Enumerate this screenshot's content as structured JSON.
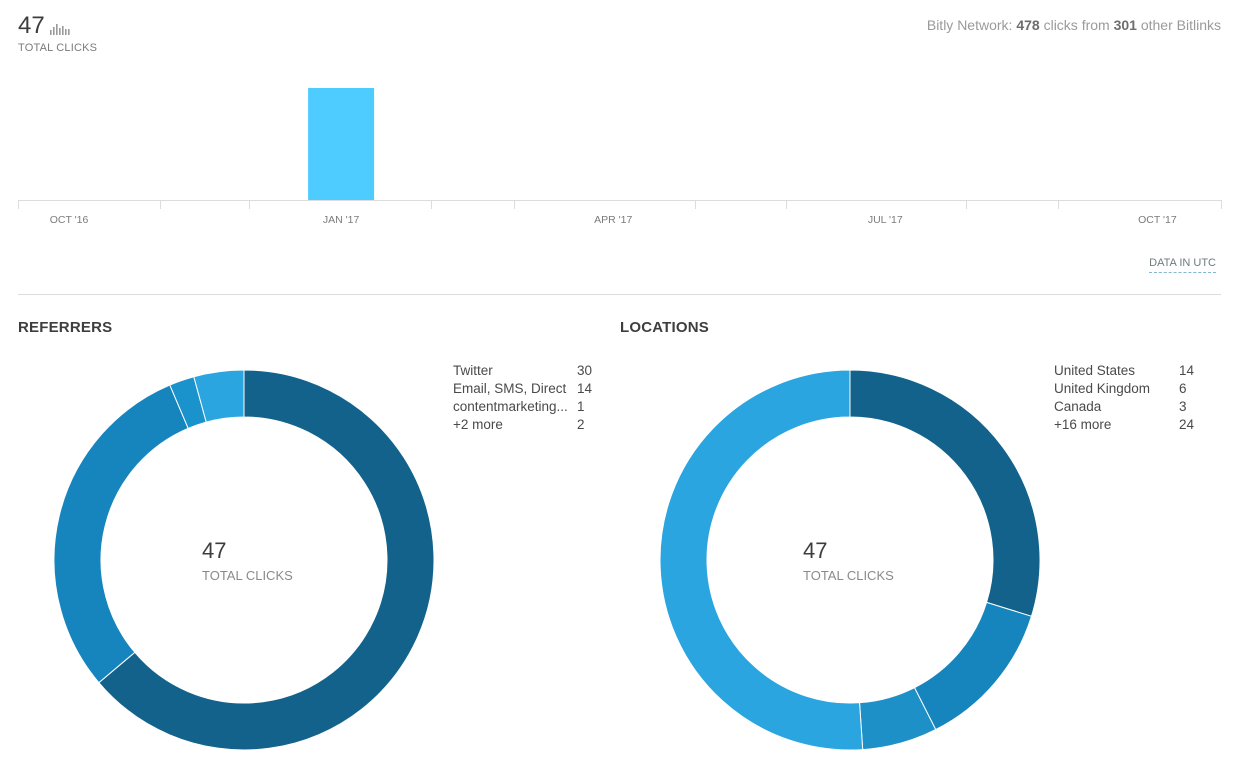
{
  "summary": {
    "total_clicks": "47",
    "total_clicks_label": "TOTAL CLICKS",
    "network_prefix": "Bitly Network:",
    "network_clicks": "478",
    "network_mid": "clicks from",
    "network_links": "301",
    "network_suffix": "other Bitlinks"
  },
  "chart_data": {
    "type": "bar",
    "categories": [
      "OCT '16",
      "JAN '17",
      "APR '17",
      "JUL '17",
      "OCT '17"
    ],
    "x": [
      "2016-10",
      "2016-11",
      "2016-12",
      "2017-01",
      "2017-02",
      "2017-03",
      "2017-04",
      "2017-05",
      "2017-06",
      "2017-07",
      "2017-08",
      "2017-09",
      "2017-10",
      "2017-11"
    ],
    "values": [
      0,
      0,
      0,
      47,
      0,
      0,
      0,
      0,
      0,
      0,
      0,
      0,
      0,
      0
    ],
    "color": "#4ecbff",
    "grid": false
  },
  "timezone_note": "DATA IN UTC",
  "referrers": {
    "title": "REFERRERS",
    "center_value": "47",
    "center_label": "TOTAL CLICKS",
    "items": [
      {
        "name": "Twitter",
        "value": 30,
        "display": "30",
        "color": "#12628b"
      },
      {
        "name": "Email, SMS, Direct",
        "value": 14,
        "display": "14",
        "color": "#1684bd"
      },
      {
        "name": "contentmarketing...",
        "value": 1,
        "display": "1",
        "color": "#1a93cd"
      },
      {
        "name": "+2 more",
        "value": 2,
        "display": "2",
        "color": "#2aa5e0"
      }
    ]
  },
  "locations": {
    "title": "LOCATIONS",
    "center_value": "47",
    "center_label": "TOTAL CLICKS",
    "items": [
      {
        "name": "United States",
        "value": 14,
        "display": "14",
        "color": "#12628b"
      },
      {
        "name": "United Kingdom",
        "value": 6,
        "display": "6",
        "color": "#1684bd"
      },
      {
        "name": "Canada",
        "value": 3,
        "display": "3",
        "color": "#1e90c8"
      },
      {
        "name": "+16 more",
        "value": 24,
        "display": "24",
        "color": "#2aa5e0"
      }
    ]
  }
}
